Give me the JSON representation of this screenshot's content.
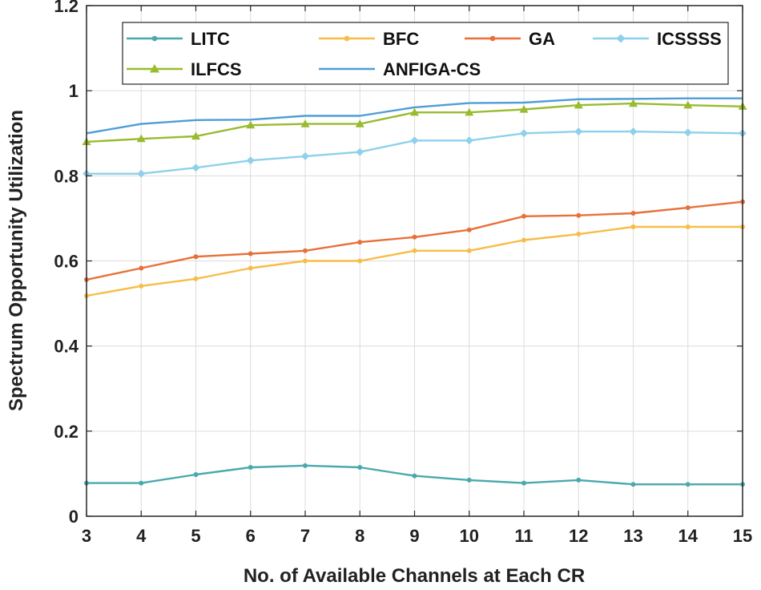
{
  "chart_data": {
    "type": "line",
    "xlabel": "No. of Available Channels at Each CR",
    "ylabel": "Spectrum Opportunity Utilization",
    "x": [
      3,
      4,
      5,
      6,
      7,
      8,
      9,
      10,
      11,
      12,
      13,
      14,
      15
    ],
    "xlim": [
      3,
      15
    ],
    "ylim": [
      0,
      1.2
    ],
    "xticks": [
      "3",
      "4",
      "5",
      "6",
      "7",
      "8",
      "9",
      "10",
      "11",
      "12",
      "13",
      "14",
      "15"
    ],
    "yticks": [
      "0",
      "0.2",
      "0.4",
      "0.6",
      "0.8",
      "1",
      "1.2"
    ],
    "grid": true,
    "legend_position": "top",
    "series": [
      {
        "name": "LITC",
        "color": "#4aa9ac",
        "marker": "dot",
        "values": [
          0.078,
          0.078,
          0.098,
          0.115,
          0.119,
          0.115,
          0.095,
          0.085,
          0.078,
          0.085,
          0.075,
          0.075,
          0.075
        ]
      },
      {
        "name": "BFC",
        "color": "#f7bd47",
        "marker": "dot",
        "values": [
          0.518,
          0.541,
          0.558,
          0.583,
          0.6,
          0.6,
          0.624,
          0.624,
          0.649,
          0.663,
          0.68,
          0.68,
          0.68
        ]
      },
      {
        "name": "GA",
        "color": "#e8703a",
        "marker": "dot",
        "values": [
          0.556,
          0.583,
          0.61,
          0.617,
          0.624,
          0.644,
          0.656,
          0.673,
          0.705,
          0.707,
          0.712,
          0.725,
          0.739
        ]
      },
      {
        "name": "ICSSSS",
        "color": "#8fd0ea",
        "marker": "diamond",
        "values": [
          0.805,
          0.805,
          0.819,
          0.836,
          0.846,
          0.856,
          0.883,
          0.883,
          0.9,
          0.904,
          0.904,
          0.902,
          0.9
        ]
      },
      {
        "name": "ILFCS",
        "color": "#99bb2f",
        "marker": "triangle",
        "values": [
          0.88,
          0.887,
          0.893,
          0.919,
          0.922,
          0.922,
          0.949,
          0.949,
          0.956,
          0.966,
          0.97,
          0.966,
          0.963
        ]
      },
      {
        "name": "ANFIGA-CS",
        "color": "#4e9dd6",
        "marker": "none",
        "values": [
          0.9,
          0.922,
          0.931,
          0.932,
          0.941,
          0.941,
          0.961,
          0.971,
          0.972,
          0.98,
          0.981,
          0.982,
          0.982
        ]
      }
    ]
  }
}
